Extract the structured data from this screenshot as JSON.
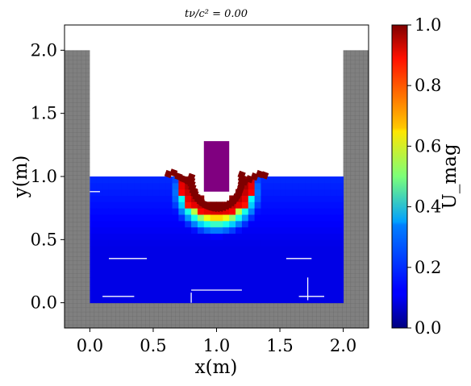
{
  "chart_data": {
    "type": "heatmap",
    "title": "tν/c² = 0.00",
    "xlabel": "x(m)",
    "ylabel": "y(m)",
    "xlim": [
      -0.2,
      2.2
    ],
    "ylim": [
      -0.2,
      2.2
    ],
    "x_ticks": [
      "0.0",
      "0.5",
      "1.0",
      "1.5",
      "2.0"
    ],
    "x_tick_values": [
      0.0,
      0.5,
      1.0,
      1.5,
      2.0
    ],
    "y_ticks": [
      "0.0",
      "0.5",
      "1.0",
      "1.5",
      "2.0"
    ],
    "y_tick_values": [
      0.0,
      0.5,
      1.0,
      1.5,
      2.0
    ],
    "colorbar": {
      "label": "U_mag",
      "colormap": "jet",
      "range": [
        0.0,
        1.0
      ],
      "ticks": [
        "0.0",
        "0.2",
        "0.4",
        "0.6",
        "0.8",
        "1.0"
      ],
      "tick_values": [
        0.0,
        0.2,
        0.4,
        0.6,
        0.8,
        1.0
      ]
    },
    "walls": [
      {
        "name": "left wall",
        "x": [
          -0.2,
          0.0
        ],
        "y": [
          -0.2,
          2.0
        ],
        "color": "#808080"
      },
      {
        "name": "right wall",
        "x": [
          2.0,
          2.2
        ],
        "y": [
          -0.2,
          2.0
        ],
        "color": "#808080"
      },
      {
        "name": "floor",
        "x": [
          -0.2,
          2.2
        ],
        "y": [
          -0.2,
          0.0
        ],
        "color": "#808080"
      }
    ],
    "impactor": {
      "x": [
        0.9,
        1.1
      ],
      "y": [
        0.88,
        1.28
      ],
      "color": "#800080"
    },
    "soil_region": {
      "x": [
        0.0,
        2.0
      ],
      "y": [
        0.0,
        1.0
      ]
    },
    "impact_center": {
      "x": 1.0,
      "y": 0.88
    },
    "grid_spacing": 0.05
  }
}
